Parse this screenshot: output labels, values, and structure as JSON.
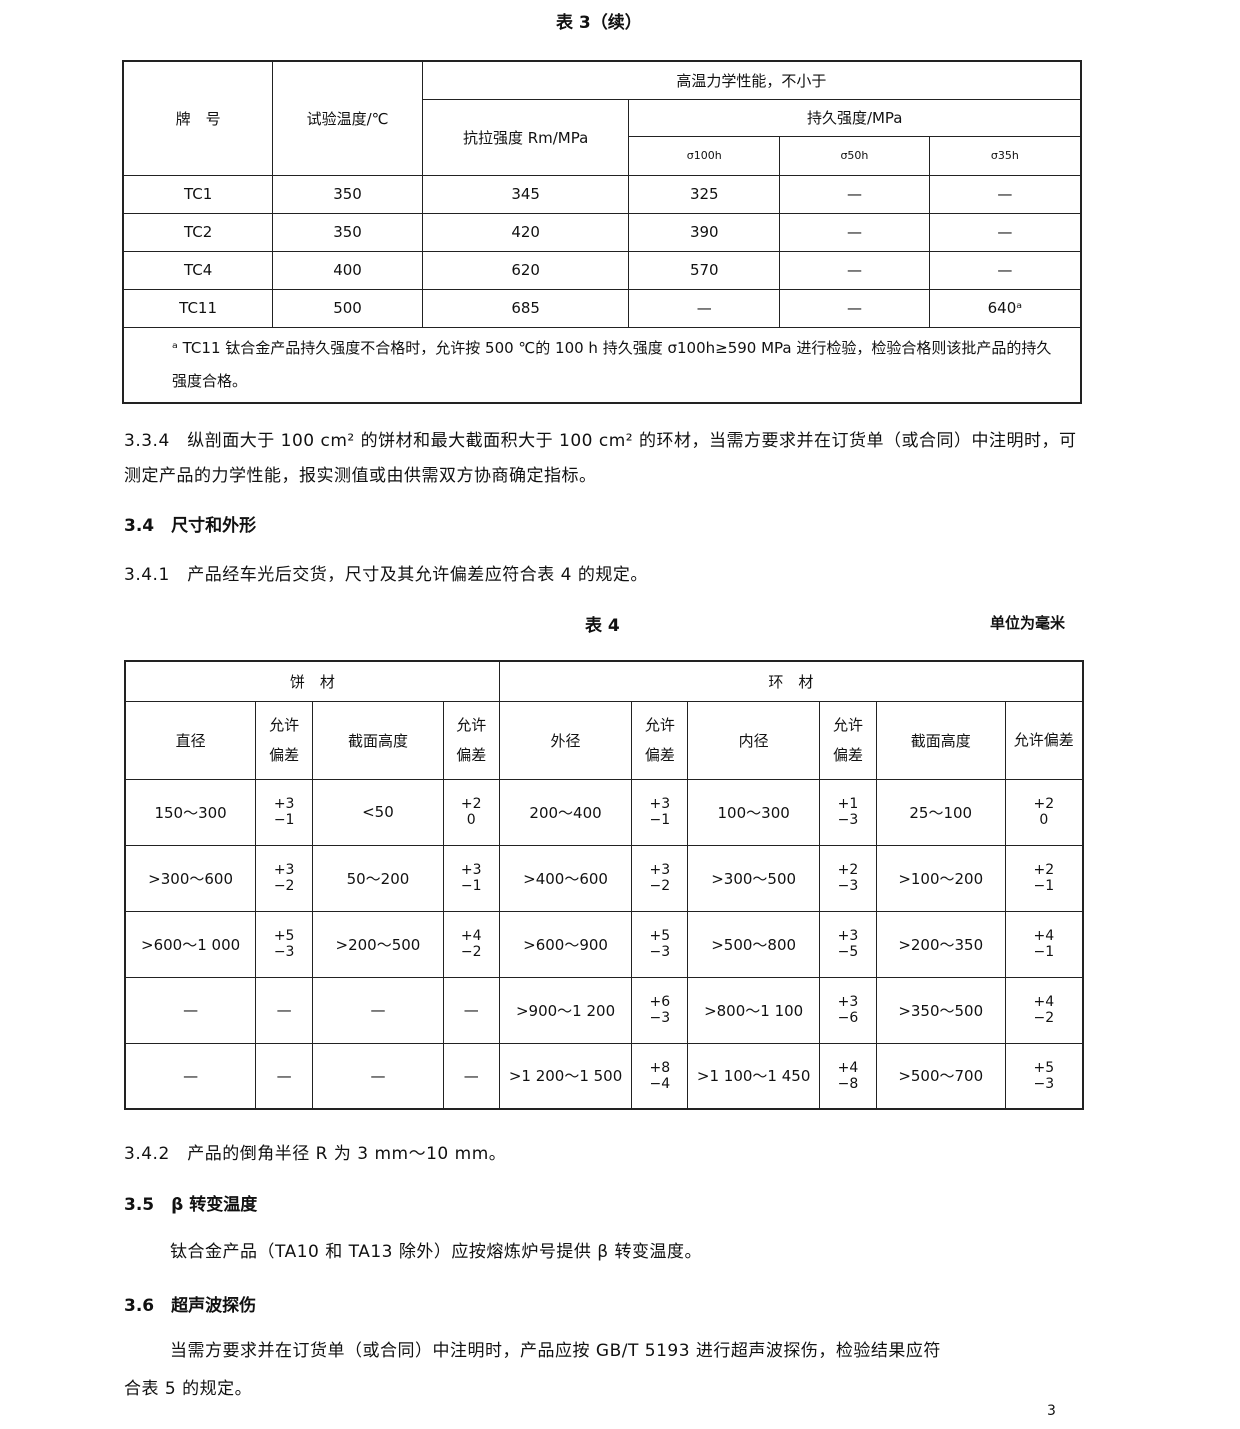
{
  "table3": {
    "caption": "表 3（续）",
    "headers": {
      "grade": "牌　号",
      "temp": "试验温度/℃",
      "group": "高温力学性能，不小于",
      "tensile": "抗拉强度 Rm/MPa",
      "creep": "持久强度/MPa",
      "s100": "σ100h",
      "s50": "σ50h",
      "s35": "σ35h"
    },
    "rows": [
      [
        "TC1",
        "350",
        "345",
        "325",
        "—",
        "—"
      ],
      [
        "TC2",
        "350",
        "420",
        "390",
        "—",
        "—"
      ],
      [
        "TC4",
        "400",
        "620",
        "570",
        "—",
        "—"
      ],
      [
        "TC11",
        "500",
        "685",
        "—",
        "—",
        "640ᵃ"
      ]
    ],
    "footnote": "ᵃ TC11 钛合金产品持久强度不合格时，允许按 500 ℃的 100 h 持久强度 σ100h≥590 MPa 进行检验，检验合格则该批产品的持久强度合格。"
  },
  "p334": "3.3.4　纵剖面大于 100 cm² 的饼材和最大截面积大于 100 cm² 的环材，当需方要求并在订货单（或合同）中注明时，可测定产品的力学性能，报实测值或由供需双方协商确定指标。",
  "s34": "3.4　尺寸和外形",
  "p341": "3.4.1　产品经车光后交货，尺寸及其允许偏差应符合表 4 的规定。",
  "table4": {
    "caption": "表 4",
    "unit": "单位为毫米",
    "group1": "饼　材",
    "group2": "环　材",
    "headers": [
      "直径",
      "允许偏差",
      "截面高度",
      "允许偏差",
      "外径",
      "允许偏差",
      "内径",
      "允许偏差",
      "截面高度",
      "允许偏差"
    ],
    "rows": [
      [
        "150～300",
        [
          "+3",
          "−1"
        ],
        "<50",
        [
          "+2",
          "0"
        ],
        "200～400",
        [
          "+3",
          "−1"
        ],
        "100～300",
        [
          "+1",
          "−3"
        ],
        "25～100",
        [
          "+2",
          "0"
        ]
      ],
      [
        ">300～600",
        [
          "+3",
          "−2"
        ],
        "50～200",
        [
          "+3",
          "−1"
        ],
        ">400～600",
        [
          "+3",
          "−2"
        ],
        ">300～500",
        [
          "+2",
          "−3"
        ],
        ">100～200",
        [
          "+2",
          "−1"
        ]
      ],
      [
        ">600～1 000",
        [
          "+5",
          "−3"
        ],
        ">200～500",
        [
          "+4",
          "−2"
        ],
        ">600～900",
        [
          "+5",
          "−3"
        ],
        ">500～800",
        [
          "+3",
          "−5"
        ],
        ">200～350",
        [
          "+4",
          "−1"
        ]
      ],
      [
        "—",
        "—",
        "—",
        "—",
        ">900～1 200",
        [
          "+6",
          "−3"
        ],
        ">800～1 100",
        [
          "+3",
          "−6"
        ],
        ">350～500",
        [
          "+4",
          "−2"
        ]
      ],
      [
        "—",
        "—",
        "—",
        "—",
        ">1 200～1 500",
        [
          "+8",
          "−4"
        ],
        ">1 100～1 450",
        [
          "+4",
          "−8"
        ],
        ">500～700",
        [
          "+5",
          "−3"
        ]
      ]
    ]
  },
  "p342": "3.4.2　产品的倒角半径 R 为 3 mm～10 mm。",
  "s35": "3.5　β 转变温度",
  "p35": "钛合金产品（TA10 和 TA13 除外）应按熔炼炉号提供 β 转变温度。",
  "s36": "3.6　超声波探伤",
  "p36a": "当需方要求并在订货单（或合同）中注明时，产品应按 GB/T 5193 进行超声波探伤，检验结果应符",
  "p36b": "合表 5 的规定。",
  "page_number": "3"
}
